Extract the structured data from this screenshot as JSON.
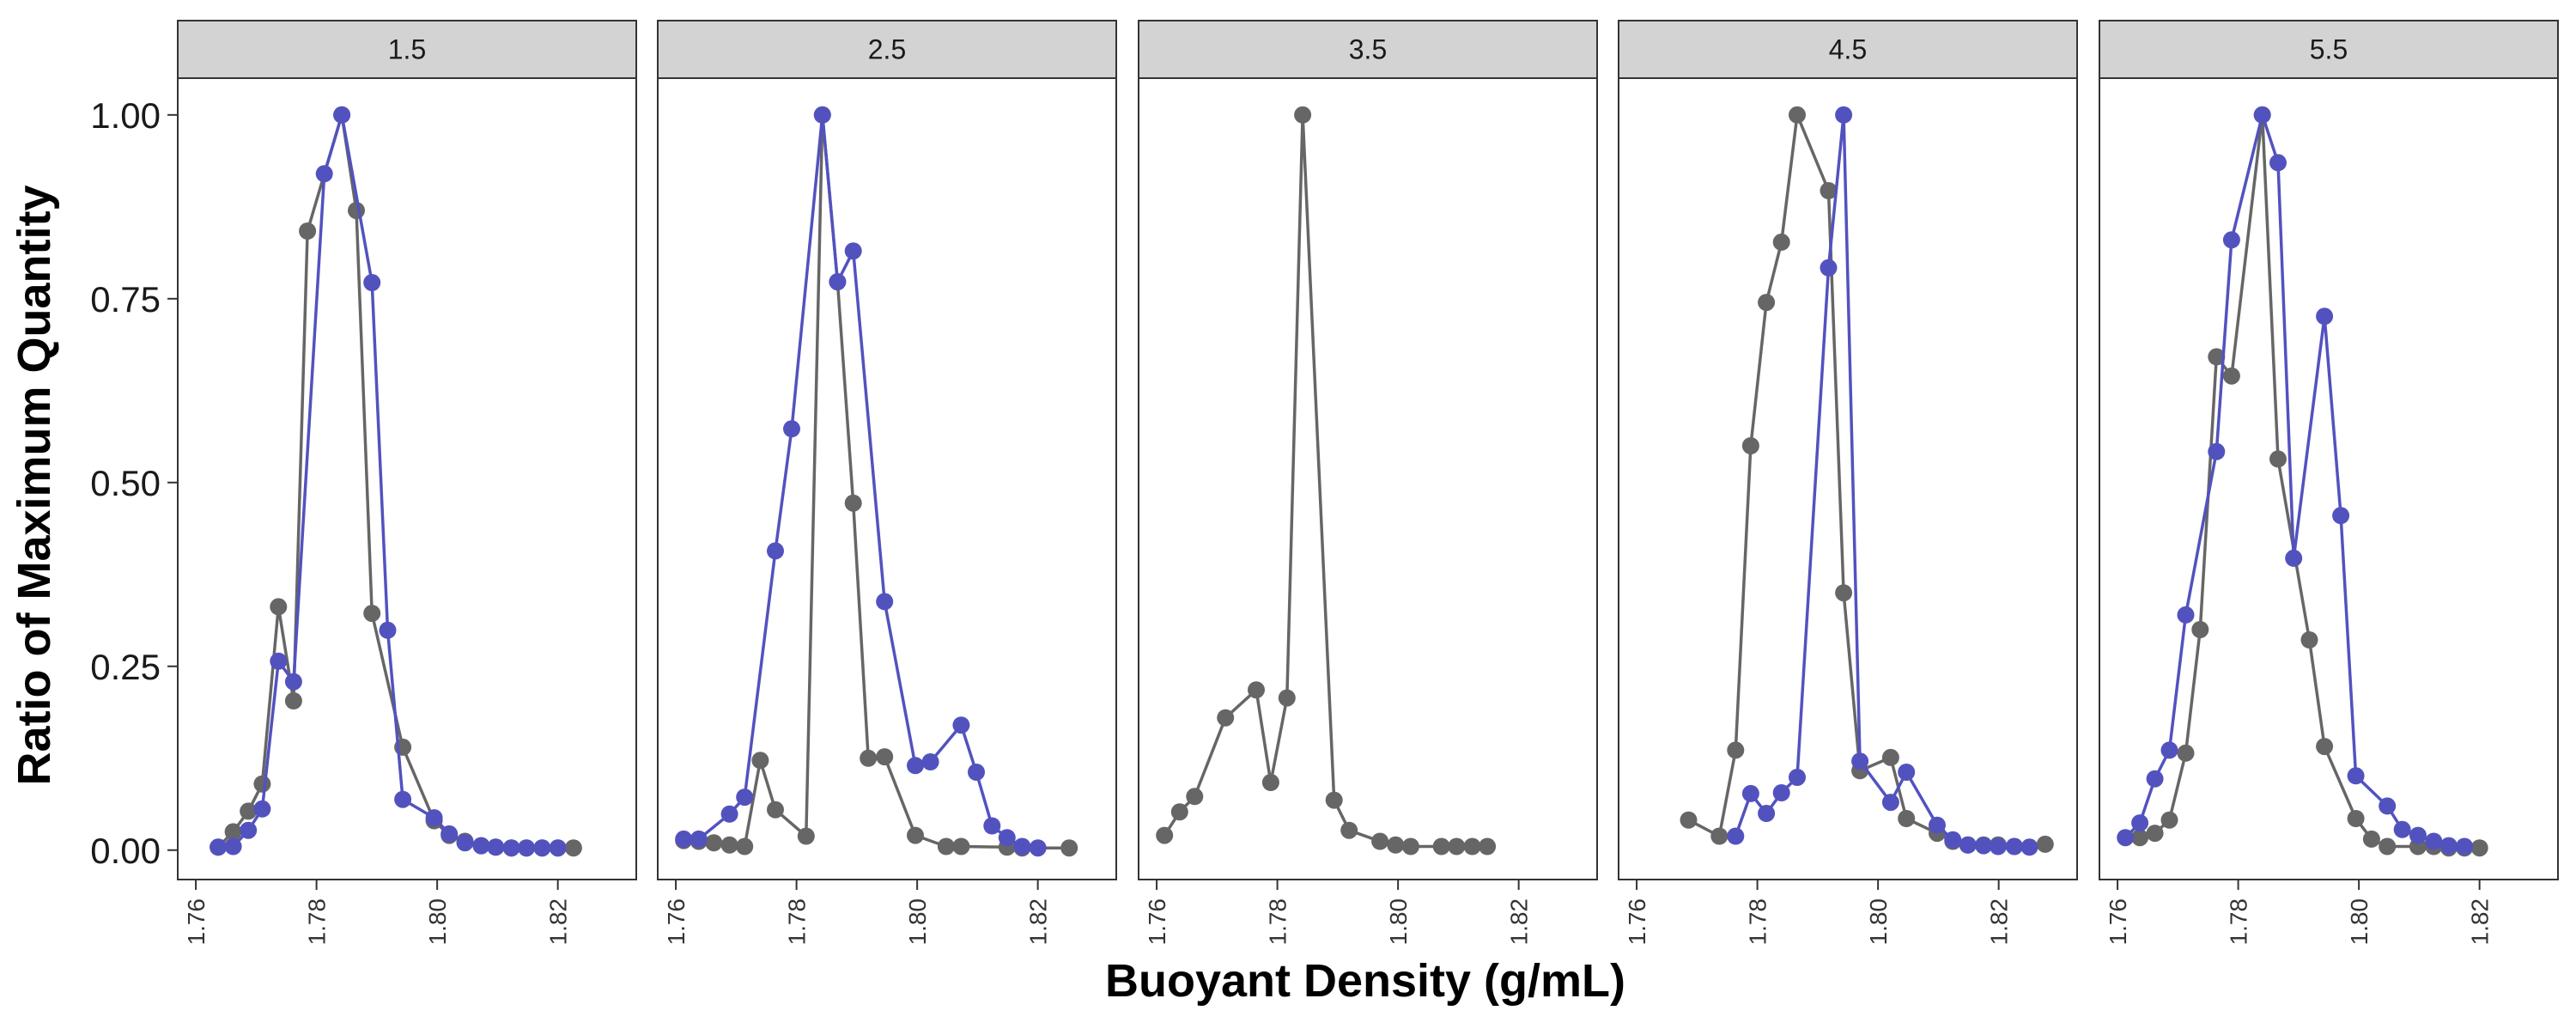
{
  "chart_data": {
    "type": "line",
    "facet_variable_values": [
      "1.5",
      "2.5",
      "3.5",
      "4.5",
      "5.5"
    ],
    "xlabel": "Buoyant Density (g/mL)",
    "ylabel": "Ratio of Maximum Quantity",
    "xlim": [
      1.757,
      1.833
    ],
    "ylim": [
      -0.04,
      1.05
    ],
    "x_ticks": [
      1.76,
      1.78,
      1.8,
      1.82
    ],
    "x_tick_labels": [
      "1.76",
      "1.78",
      "1.80",
      "1.82"
    ],
    "y_ticks": [
      0,
      0.25,
      0.5,
      0.75,
      1.0
    ],
    "y_tick_labels": [
      "0.00",
      "0.25",
      "0.50",
      "0.75",
      "1.00"
    ],
    "colors": {
      "gray_series": "#666666",
      "blue_series": "#5252bf",
      "strip_fill": "#d3d3d3"
    },
    "panels": [
      {
        "label": "1.5",
        "series": [
          {
            "color": "#666666",
            "points": [
              [
                1.7637,
                0.004
              ],
              [
                1.7662,
                0.025
              ],
              [
                1.7687,
                0.053
              ],
              [
                1.771,
                0.09
              ],
              [
                1.7737,
                0.331
              ],
              [
                1.7762,
                0.203
              ],
              [
                1.7785,
                0.842
              ],
              [
                1.7842,
                1.0
              ],
              [
                1.7866,
                0.87
              ],
              [
                1.7892,
                0.322
              ],
              [
                1.7943,
                0.14
              ],
              [
                1.7995,
                0.04
              ],
              [
                1.802,
                0.02
              ],
              [
                1.8046,
                0.012
              ],
              [
                1.8073,
                0.006
              ],
              [
                1.8097,
                0.004
              ],
              [
                1.8123,
                0.003
              ],
              [
                1.8148,
                0.003
              ],
              [
                1.8174,
                0.003
              ],
              [
                1.82,
                0.003
              ],
              [
                1.8226,
                0.003
              ]
            ]
          },
          {
            "color": "#5252bf",
            "points": [
              [
                1.7637,
                0.004
              ],
              [
                1.7662,
                0.005
              ],
              [
                1.7687,
                0.027
              ],
              [
                1.771,
                0.056
              ],
              [
                1.7737,
                0.257
              ],
              [
                1.7762,
                0.229
              ],
              [
                1.7813,
                0.92
              ],
              [
                1.7842,
                1.0
              ],
              [
                1.7892,
                0.772
              ],
              [
                1.7918,
                0.299
              ],
              [
                1.7943,
                0.069
              ],
              [
                1.7995,
                0.044
              ],
              [
                1.802,
                0.022
              ],
              [
                1.8046,
                0.01
              ],
              [
                1.8073,
                0.006
              ],
              [
                1.8097,
                0.004
              ],
              [
                1.8123,
                0.003
              ],
              [
                1.8148,
                0.003
              ],
              [
                1.8174,
                0.003
              ],
              [
                1.82,
                0.003
              ]
            ]
          }
        ]
      },
      {
        "label": "2.5",
        "series": [
          {
            "color": "#666666",
            "points": [
              [
                1.7613,
                0.013
              ],
              [
                1.7638,
                0.012
              ],
              [
                1.7663,
                0.01
              ],
              [
                1.7689,
                0.007
              ],
              [
                1.7714,
                0.005
              ],
              [
                1.774,
                0.122
              ],
              [
                1.7765,
                0.055
              ],
              [
                1.7816,
                0.019
              ],
              [
                1.7843,
                1.0
              ],
              [
                1.7868,
                0.773
              ],
              [
                1.7894,
                0.472
              ],
              [
                1.7919,
                0.125
              ],
              [
                1.7946,
                0.127
              ],
              [
                1.7997,
                0.02
              ],
              [
                1.8048,
                0.005
              ],
              [
                1.8073,
                0.005
              ],
              [
                1.8149,
                0.004
              ],
              [
                1.8174,
                0.003
              ],
              [
                1.8252,
                0.003
              ]
            ]
          },
          {
            "color": "#5252bf",
            "points": [
              [
                1.7613,
                0.015
              ],
              [
                1.7638,
                0.015
              ],
              [
                1.7689,
                0.049
              ],
              [
                1.7714,
                0.072
              ],
              [
                1.7765,
                0.407
              ],
              [
                1.7792,
                0.573
              ],
              [
                1.7843,
                1.0
              ],
              [
                1.7868,
                0.773
              ],
              [
                1.7894,
                0.815
              ],
              [
                1.7946,
                0.338
              ],
              [
                1.7997,
                0.115
              ],
              [
                1.8022,
                0.12
              ],
              [
                1.8073,
                0.17
              ],
              [
                1.8098,
                0.106
              ],
              [
                1.8124,
                0.033
              ],
              [
                1.8149,
                0.017
              ],
              [
                1.8174,
                0.005
              ],
              [
                1.82,
                0.003
              ]
            ]
          }
        ]
      },
      {
        "label": "3.5",
        "series": [
          {
            "color": "#666666",
            "points": [
              [
                1.7613,
                0.02
              ],
              [
                1.7638,
                0.052
              ],
              [
                1.7663,
                0.073
              ],
              [
                1.7714,
                0.18
              ],
              [
                1.7765,
                0.218
              ],
              [
                1.7789,
                0.092
              ],
              [
                1.7816,
                0.207
              ],
              [
                1.7842,
                1.0
              ],
              [
                1.7894,
                0.068
              ],
              [
                1.7919,
                0.027
              ],
              [
                1.797,
                0.012
              ],
              [
                1.7996,
                0.007
              ],
              [
                1.8021,
                0.005
              ],
              [
                1.8072,
                0.005
              ],
              [
                1.8097,
                0.005
              ],
              [
                1.8123,
                0.005
              ],
              [
                1.8148,
                0.005
              ]
            ]
          }
        ]
      },
      {
        "label": "4.5",
        "series": [
          {
            "color": "#666666",
            "points": [
              [
                1.7686,
                0.041
              ],
              [
                1.7737,
                0.019
              ],
              [
                1.7764,
                0.136
              ],
              [
                1.7789,
                0.55
              ],
              [
                1.7815,
                0.745
              ],
              [
                1.784,
                0.827
              ],
              [
                1.7866,
                1.0
              ],
              [
                1.7918,
                0.897
              ],
              [
                1.7943,
                0.35
              ],
              [
                1.797,
                0.108
              ],
              [
                1.8021,
                0.126
              ],
              [
                1.8047,
                0.043
              ],
              [
                1.8098,
                0.023
              ],
              [
                1.8124,
                0.012
              ],
              [
                1.8149,
                0.007
              ],
              [
                1.8175,
                0.007
              ],
              [
                1.8199,
                0.007
              ],
              [
                1.8226,
                0.005
              ],
              [
                1.8277,
                0.008
              ]
            ]
          },
          {
            "color": "#5252bf",
            "points": [
              [
                1.7764,
                0.019
              ],
              [
                1.7789,
                0.077
              ],
              [
                1.7815,
                0.05
              ],
              [
                1.784,
                0.078
              ],
              [
                1.7866,
                0.099
              ],
              [
                1.7918,
                0.792
              ],
              [
                1.7943,
                1.0
              ],
              [
                1.797,
                0.121
              ],
              [
                1.8021,
                0.065
              ],
              [
                1.8047,
                0.106
              ],
              [
                1.8098,
                0.034
              ],
              [
                1.8124,
                0.014
              ],
              [
                1.8149,
                0.007
              ],
              [
                1.8175,
                0.006
              ],
              [
                1.8199,
                0.005
              ],
              [
                1.8226,
                0.005
              ],
              [
                1.8251,
                0.004
              ]
            ]
          }
        ]
      },
      {
        "label": "5.5",
        "series": [
          {
            "color": "#666666",
            "points": [
              [
                1.7637,
                0.017
              ],
              [
                1.7662,
                0.023
              ],
              [
                1.7686,
                0.041
              ],
              [
                1.7713,
                0.132
              ],
              [
                1.7737,
                0.3
              ],
              [
                1.7764,
                0.671
              ],
              [
                1.7789,
                0.645
              ],
              [
                1.784,
                1.0
              ],
              [
                1.7866,
                0.532
              ],
              [
                1.7918,
                0.286
              ],
              [
                1.7943,
                0.141
              ],
              [
                1.7995,
                0.043
              ],
              [
                1.8021,
                0.015
              ],
              [
                1.8047,
                0.005
              ],
              [
                1.8098,
                0.005
              ],
              [
                1.8124,
                0.005
              ],
              [
                1.8149,
                0.003
              ],
              [
                1.8175,
                0.003
              ],
              [
                1.82,
                0.003
              ]
            ]
          },
          {
            "color": "#5252bf",
            "points": [
              [
                1.7613,
                0.017
              ],
              [
                1.7637,
                0.037
              ],
              [
                1.7662,
                0.097
              ],
              [
                1.7686,
                0.136
              ],
              [
                1.7713,
                0.32
              ],
              [
                1.7764,
                0.542
              ],
              [
                1.7789,
                0.83
              ],
              [
                1.784,
                1.0
              ],
              [
                1.7866,
                0.935
              ],
              [
                1.7892,
                0.397
              ],
              [
                1.7943,
                0.726
              ],
              [
                1.797,
                0.455
              ],
              [
                1.7995,
                0.101
              ],
              [
                1.8047,
                0.06
              ],
              [
                1.8072,
                0.028
              ],
              [
                1.8098,
                0.02
              ],
              [
                1.8124,
                0.012
              ],
              [
                1.8149,
                0.006
              ],
              [
                1.8175,
                0.005
              ]
            ]
          }
        ]
      }
    ]
  }
}
